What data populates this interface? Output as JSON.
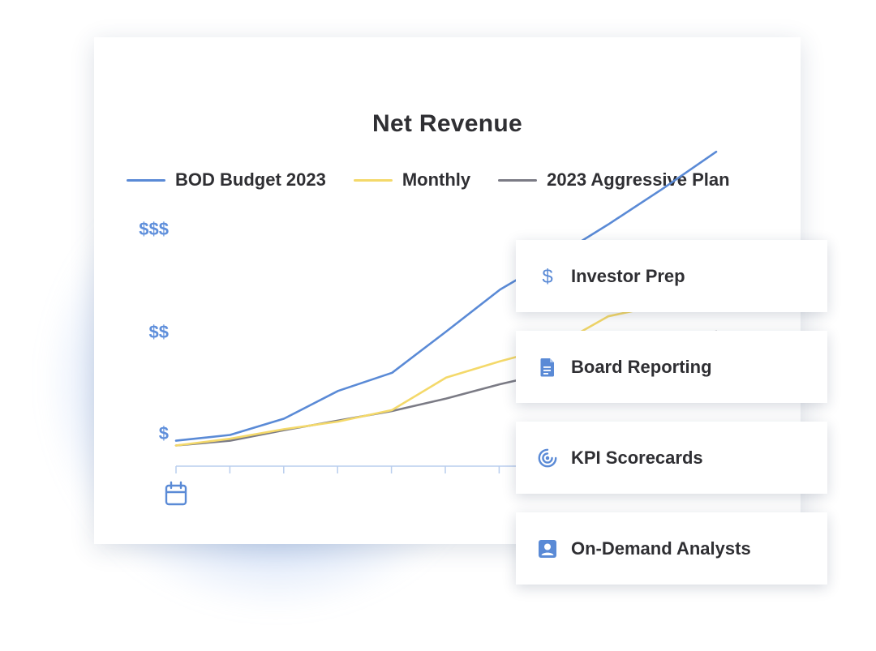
{
  "chart_data": {
    "type": "line",
    "title": "Net Revenue",
    "x": [
      1,
      2,
      3,
      4,
      5,
      6,
      7,
      8,
      9,
      10,
      11
    ],
    "series": [
      {
        "name": "BOD Budget 2023",
        "color": "#5a8ad6",
        "values": [
          0.4,
          0.7,
          1.55,
          3.0,
          3.95,
          6.1,
          8.3,
          9.95,
          11.7,
          13.55,
          15.5
        ]
      },
      {
        "name": "Monthly",
        "color": "#f4d96a",
        "values": [
          0.15,
          0.5,
          1.0,
          1.4,
          2.0,
          3.7,
          4.55,
          5.3,
          6.9,
          7.5,
          8.0
        ]
      },
      {
        "name": "2023 Aggressive Plan",
        "color": "#7b7b85",
        "values": [
          0.15,
          0.4,
          0.95,
          1.45,
          1.95,
          2.6,
          3.35,
          4.0,
          5.0,
          5.6,
          6.1
        ]
      }
    ],
    "y_tick_labels": [
      "$",
      "$$",
      "$$$"
    ],
    "y_tick_values": [
      0.7,
      6.0,
      11.4
    ],
    "ylim": [
      0,
      16
    ],
    "x_axis_icon": "calendar-icon",
    "legend": "top",
    "grid": false
  },
  "features": [
    {
      "label": "Investor Prep",
      "icon": "dollar-icon"
    },
    {
      "label": "Board Reporting",
      "icon": "document-icon"
    },
    {
      "label": "KPI Scorecards",
      "icon": "target-icon"
    },
    {
      "label": "On-Demand Analysts",
      "icon": "person-badge-icon"
    }
  ],
  "colors": {
    "accent": "#5a8ad6",
    "text": "#2f2f33"
  }
}
